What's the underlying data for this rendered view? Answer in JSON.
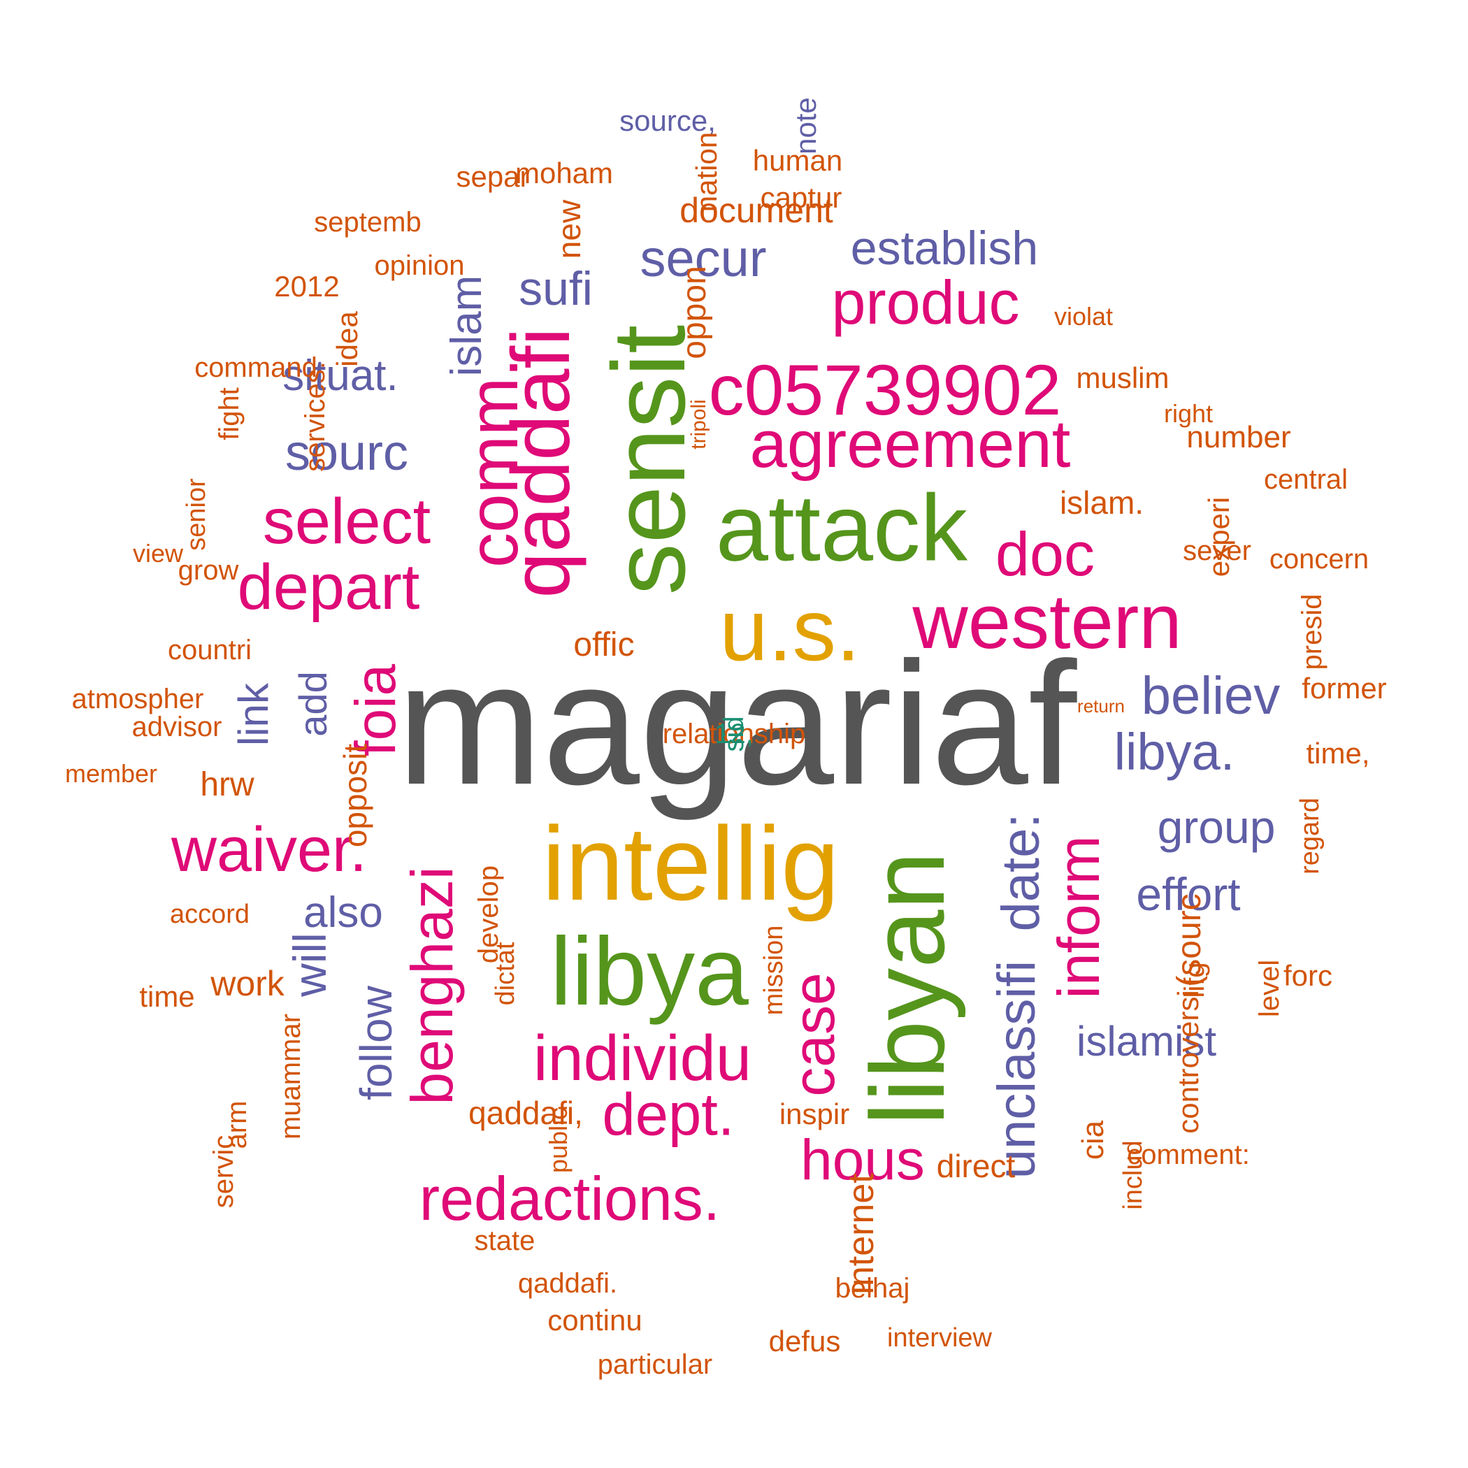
{
  "word_cloud": {
    "colors": {
      "dark": "#555555",
      "gold": "#e2a100",
      "green": "#55951c",
      "pink": "#df0a77",
      "purple": "#5f5ea6",
      "orange": "#d25408",
      "teal": "#1b8f73"
    },
    "words": [
      {
        "text": "magariaf",
        "color": "dark",
        "rotated": false
      },
      {
        "text": "intellig",
        "color": "gold",
        "rotated": false
      },
      {
        "text": "u.s.",
        "color": "gold",
        "rotated": false
      },
      {
        "text": "attack",
        "color": "green",
        "rotated": false
      },
      {
        "text": "sensit",
        "color": "green",
        "rotated": true
      },
      {
        "text": "libya",
        "color": "green",
        "rotated": false
      },
      {
        "text": "libyan",
        "color": "green",
        "rotated": true
      },
      {
        "text": "western",
        "color": "pink",
        "rotated": false
      },
      {
        "text": "c05739902",
        "color": "pink",
        "rotated": false
      },
      {
        "text": "agreement",
        "color": "pink",
        "rotated": false
      },
      {
        "text": "produc",
        "color": "pink",
        "rotated": false
      },
      {
        "text": "qaddafi",
        "color": "pink",
        "rotated": true
      },
      {
        "text": "comm.",
        "color": "pink",
        "rotated": true
      },
      {
        "text": "select",
        "color": "pink",
        "rotated": false
      },
      {
        "text": "depart",
        "color": "pink",
        "rotated": false
      },
      {
        "text": "doc",
        "color": "pink",
        "rotated": false
      },
      {
        "text": "foia",
        "color": "pink",
        "rotated": true
      },
      {
        "text": "waiver.",
        "color": "pink",
        "rotated": false
      },
      {
        "text": "benghazi",
        "color": "pink",
        "rotated": true
      },
      {
        "text": "individu",
        "color": "pink",
        "rotated": false
      },
      {
        "text": "dept.",
        "color": "pink",
        "rotated": false
      },
      {
        "text": "case",
        "color": "pink",
        "rotated": true
      },
      {
        "text": "redactions.",
        "color": "pink",
        "rotated": false
      },
      {
        "text": "hous",
        "color": "pink",
        "rotated": false
      },
      {
        "text": "inform",
        "color": "pink",
        "rotated": true
      },
      {
        "text": "unclassifi",
        "color": "purple",
        "rotated": true
      },
      {
        "text": "date:",
        "color": "purple",
        "rotated": true
      },
      {
        "text": "secur",
        "color": "purple",
        "rotated": false
      },
      {
        "text": "establish",
        "color": "purple",
        "rotated": false
      },
      {
        "text": "sufi",
        "color": "purple",
        "rotated": false
      },
      {
        "text": "situat.",
        "color": "purple",
        "rotated": false
      },
      {
        "text": "sourc",
        "color": "purple",
        "rotated": false
      },
      {
        "text": "islam",
        "color": "purple",
        "rotated": true
      },
      {
        "text": "believ",
        "color": "purple",
        "rotated": false
      },
      {
        "text": "libya.",
        "color": "purple",
        "rotated": false
      },
      {
        "text": "group",
        "color": "purple",
        "rotated": false
      },
      {
        "text": "effort",
        "color": "purple",
        "rotated": false
      },
      {
        "text": "link",
        "color": "purple",
        "rotated": true
      },
      {
        "text": "add",
        "color": "purple",
        "rotated": true
      },
      {
        "text": "also",
        "color": "purple",
        "rotated": false
      },
      {
        "text": "will",
        "color": "purple",
        "rotated": true
      },
      {
        "text": "follow",
        "color": "purple",
        "rotated": true
      },
      {
        "text": "islamist",
        "color": "purple",
        "rotated": false
      },
      {
        "text": "source,",
        "color": "purple",
        "rotated": false
      },
      {
        "text": "note",
        "color": "purple",
        "rotated": true
      },
      {
        "text": "separ",
        "color": "orange",
        "rotated": false
      },
      {
        "text": "moham",
        "color": "orange",
        "rotated": false
      },
      {
        "text": "nation",
        "color": "orange",
        "rotated": true
      },
      {
        "text": "human",
        "color": "orange",
        "rotated": false
      },
      {
        "text": "captur",
        "color": "orange",
        "rotated": false
      },
      {
        "text": "document",
        "color": "orange",
        "rotated": false
      },
      {
        "text": "new",
        "color": "orange",
        "rotated": true
      },
      {
        "text": "septemb",
        "color": "orange",
        "rotated": false
      },
      {
        "text": "opinion",
        "color": "orange",
        "rotated": false
      },
      {
        "text": "2012",
        "color": "orange",
        "rotated": false
      },
      {
        "text": "oppon",
        "color": "orange",
        "rotated": true
      },
      {
        "text": "idea",
        "color": "orange",
        "rotated": true
      },
      {
        "text": "violat",
        "color": "orange",
        "rotated": false
      },
      {
        "text": "muslim",
        "color": "orange",
        "rotated": false
      },
      {
        "text": "command",
        "color": "orange",
        "rotated": false
      },
      {
        "text": "fight",
        "color": "orange",
        "rotated": true
      },
      {
        "text": "services.",
        "color": "orange",
        "rotated": true
      },
      {
        "text": "right",
        "color": "orange",
        "rotated": false
      },
      {
        "text": "number",
        "color": "orange",
        "rotated": false
      },
      {
        "text": "central",
        "color": "orange",
        "rotated": false
      },
      {
        "text": "islam.",
        "color": "orange",
        "rotated": false
      },
      {
        "text": "experi",
        "color": "orange",
        "rotated": true
      },
      {
        "text": "senior",
        "color": "orange",
        "rotated": true
      },
      {
        "text": "sever",
        "color": "orange",
        "rotated": false
      },
      {
        "text": "concern",
        "color": "orange",
        "rotated": false
      },
      {
        "text": "view",
        "color": "orange",
        "rotated": false
      },
      {
        "text": "grow",
        "color": "orange",
        "rotated": false
      },
      {
        "text": "offic",
        "color": "orange",
        "rotated": false
      },
      {
        "text": "presid",
        "color": "orange",
        "rotated": true
      },
      {
        "text": "countri",
        "color": "orange",
        "rotated": false
      },
      {
        "text": "former",
        "color": "orange",
        "rotated": false
      },
      {
        "text": "atmospher",
        "color": "orange",
        "rotated": false
      },
      {
        "text": "advisor",
        "color": "orange",
        "rotated": false
      },
      {
        "text": "time,",
        "color": "orange",
        "rotated": false
      },
      {
        "text": "member",
        "color": "orange",
        "rotated": false
      },
      {
        "text": "hrw",
        "color": "orange",
        "rotated": false
      },
      {
        "text": "opposit",
        "color": "orange",
        "rotated": true
      },
      {
        "text": "regard",
        "color": "orange",
        "rotated": true
      },
      {
        "text": "accord",
        "color": "orange",
        "rotated": false
      },
      {
        "text": "work",
        "color": "orange",
        "rotated": false
      },
      {
        "text": "develop",
        "color": "orange",
        "rotated": true
      },
      {
        "text": "dictat",
        "color": "orange",
        "rotated": true
      },
      {
        "text": "mission",
        "color": "orange",
        "rotated": true
      },
      {
        "text": "(sourc",
        "color": "orange",
        "rotated": true
      },
      {
        "text": "lifg",
        "color": "orange",
        "rotated": true
      },
      {
        "text": "level",
        "color": "orange",
        "rotated": true
      },
      {
        "text": "forc",
        "color": "orange",
        "rotated": false
      },
      {
        "text": "time",
        "color": "orange",
        "rotated": false
      },
      {
        "text": "controversi",
        "color": "orange",
        "rotated": true
      },
      {
        "text": "muammar",
        "color": "orange",
        "rotated": true
      },
      {
        "text": "qaddafi,",
        "color": "orange",
        "rotated": false
      },
      {
        "text": "public",
        "color": "orange",
        "rotated": true
      },
      {
        "text": "inspir",
        "color": "orange",
        "rotated": false
      },
      {
        "text": "cia",
        "color": "orange",
        "rotated": true
      },
      {
        "text": "arm",
        "color": "orange",
        "rotated": true
      },
      {
        "text": "direct",
        "color": "orange",
        "rotated": false
      },
      {
        "text": "includ",
        "color": "orange",
        "rotated": true
      },
      {
        "text": "comment:",
        "color": "orange",
        "rotated": false
      },
      {
        "text": "servic",
        "color": "orange",
        "rotated": true
      },
      {
        "text": "internet",
        "color": "orange",
        "rotated": true
      },
      {
        "text": "state",
        "color": "orange",
        "rotated": false
      },
      {
        "text": "qaddafi.",
        "color": "orange",
        "rotated": false
      },
      {
        "text": "belhaj",
        "color": "orange",
        "rotated": false
      },
      {
        "text": "continu",
        "color": "orange",
        "rotated": false
      },
      {
        "text": "interview",
        "color": "orange",
        "rotated": false
      },
      {
        "text": "defus",
        "color": "orange",
        "rotated": false
      },
      {
        "text": "particular",
        "color": "orange",
        "rotated": false
      },
      {
        "text": "tripoli",
        "color": "orange",
        "rotated": true
      },
      {
        "text": "return",
        "color": "orange",
        "rotated": false
      },
      {
        "text": "relationship",
        "color": "orange",
        "rotated": false
      },
      {
        "text": "12,",
        "color": "teal",
        "rotated": false
      },
      {
        "text": "sid",
        "color": "teal",
        "rotated": true
      }
    ]
  }
}
